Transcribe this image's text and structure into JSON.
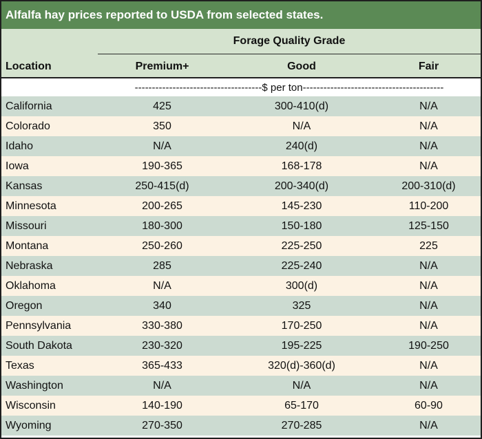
{
  "title": "Alfalfa hay prices reported to USDA from selected states.",
  "header": {
    "group_label": "Forage Quality Grade",
    "location_label": "Location",
    "columns": [
      "Premium+",
      "Good",
      "Fair"
    ]
  },
  "units_label": "-------------------------------------$ per ton-----------------------------------------",
  "colors": {
    "title_bg": "#5b8a55",
    "header_bg": "#d5e3cf",
    "row_odd": "#ccdbd1",
    "row_even": "#fcf2e3"
  },
  "rows": [
    {
      "location": "California",
      "premium": "425",
      "good": "300-410(d)",
      "fair": "N/A"
    },
    {
      "location": "Colorado",
      "premium": "350",
      "good": "N/A",
      "fair": "N/A"
    },
    {
      "location": "Idaho",
      "premium": "N/A",
      "good": "240(d)",
      "fair": "N/A"
    },
    {
      "location": "Iowa",
      "premium": "190-365",
      "good": "168-178",
      "fair": "N/A"
    },
    {
      "location": "Kansas",
      "premium": "250-415(d)",
      "good": "200-340(d)",
      "fair": "200-310(d)"
    },
    {
      "location": "Minnesota",
      "premium": "200-265",
      "good": "145-230",
      "fair": "110-200"
    },
    {
      "location": "Missouri",
      "premium": "180-300",
      "good": "150-180",
      "fair": "125-150"
    },
    {
      "location": "Montana",
      "premium": "250-260",
      "good": "225-250",
      "fair": "225"
    },
    {
      "location": "Nebraska",
      "premium": "285",
      "good": "225-240",
      "fair": "N/A"
    },
    {
      "location": "Oklahoma",
      "premium": "N/A",
      "good": "300(d)",
      "fair": "N/A"
    },
    {
      "location": "Oregon",
      "premium": "340",
      "good": "325",
      "fair": "N/A"
    },
    {
      "location": "Pennsylvania",
      "premium": "330-380",
      "good": "170-250",
      "fair": "N/A"
    },
    {
      "location": "South Dakota",
      "premium": "230-320",
      "good": "195-225",
      "fair": "190-250"
    },
    {
      "location": "Texas",
      "premium": "365-433",
      "good": "320(d)-360(d)",
      "fair": "N/A"
    },
    {
      "location": "Washington",
      "premium": "N/A",
      "good": "N/A",
      "fair": "N/A"
    },
    {
      "location": "Wisconsin",
      "premium": "140-190",
      "good": "65-170",
      "fair": "60-90"
    },
    {
      "location": "Wyoming",
      "premium": "270-350",
      "good": "270-285",
      "fair": "N/A"
    }
  ]
}
